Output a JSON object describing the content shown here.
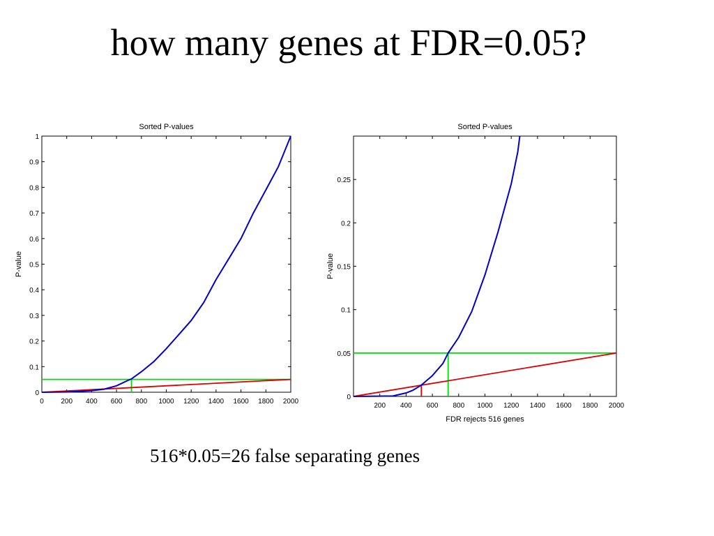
{
  "slide": {
    "title": "how many genes at FDR=0.05?",
    "caption": "516*0.05=26 false separating genes"
  },
  "colors": {
    "pvalue_curve": "#0000cc",
    "threshold": "#00dd00",
    "fdr_line": "#dd0000"
  },
  "chart_data": [
    {
      "type": "line",
      "title": "Sorted P-values",
      "xlabel": "",
      "ylabel": "P-value",
      "xlim": [
        0,
        2000
      ],
      "ylim": [
        0,
        1
      ],
      "xticks": [
        0,
        200,
        400,
        600,
        800,
        1000,
        1200,
        1400,
        1600,
        1800,
        2000
      ],
      "yticks": [
        0,
        0.1,
        0.2,
        0.3,
        0.4,
        0.5,
        0.6,
        0.7,
        0.8,
        0.9,
        1
      ],
      "ytick_labels": [
        "0",
        "0.1",
        "0.2",
        "0.3",
        "0.4",
        "0.5",
        "0.6",
        "0.7",
        "0.8",
        "0.9",
        "1"
      ],
      "series": [
        {
          "role": "pvalue_curve",
          "points": [
            [
              0,
              0
            ],
            [
              200,
              0.001
            ],
            [
              400,
              0.006
            ],
            [
              500,
              0.012
            ],
            [
              600,
              0.025
            ],
            [
              700,
              0.048
            ],
            [
              720,
              0.052
            ],
            [
              800,
              0.08
            ],
            [
              900,
              0.12
            ],
            [
              1000,
              0.17
            ],
            [
              1100,
              0.225
            ],
            [
              1200,
              0.28
            ],
            [
              1300,
              0.35
            ],
            [
              1400,
              0.44
            ],
            [
              1500,
              0.52
            ],
            [
              1600,
              0.6
            ],
            [
              1700,
              0.7
            ],
            [
              1800,
              0.79
            ],
            [
              1900,
              0.88
            ],
            [
              2000,
              1.0
            ]
          ]
        },
        {
          "role": "fdr_line",
          "points": [
            [
              0,
              0
            ],
            [
              2000,
              0.05
            ]
          ]
        },
        {
          "role": "threshold",
          "points": [
            [
              0,
              0.05
            ],
            [
              2000,
              0.05
            ]
          ]
        },
        {
          "role": "threshold",
          "points": [
            [
              720,
              0
            ],
            [
              720,
              0.05
            ]
          ]
        }
      ]
    },
    {
      "type": "line",
      "title": "Sorted P-values",
      "xlabel": "FDR rejects 516 genes",
      "ylabel": "P-value",
      "xlim": [
        0,
        2000
      ],
      "ylim": [
        0,
        0.3
      ],
      "xticks": [
        200,
        400,
        600,
        800,
        1000,
        1200,
        1400,
        1600,
        1800,
        2000
      ],
      "yticks": [
        0,
        0.05,
        0.1,
        0.15,
        0.2,
        0.25
      ],
      "ytick_labels": [
        "0",
        "0.05",
        "0.1",
        "0.15",
        "0.2",
        "0.25"
      ],
      "series": [
        {
          "role": "pvalue_curve",
          "points": [
            [
              0,
              0
            ],
            [
              300,
              0.0005
            ],
            [
              400,
              0.004
            ],
            [
              450,
              0.007
            ],
            [
              516,
              0.013
            ],
            [
              600,
              0.024
            ],
            [
              680,
              0.038
            ],
            [
              720,
              0.05
            ],
            [
              800,
              0.068
            ],
            [
              900,
              0.098
            ],
            [
              1000,
              0.14
            ],
            [
              1100,
              0.19
            ],
            [
              1200,
              0.245
            ],
            [
              1250,
              0.282
            ],
            [
              1265,
              0.3
            ]
          ]
        },
        {
          "role": "fdr_line",
          "points": [
            [
              0,
              0
            ],
            [
              2000,
              0.05
            ]
          ]
        },
        {
          "role": "threshold",
          "points": [
            [
              0,
              0.05
            ],
            [
              2000,
              0.05
            ]
          ]
        },
        {
          "role": "threshold",
          "points": [
            [
              720,
              0
            ],
            [
              720,
              0.05
            ]
          ]
        },
        {
          "role": "fdr_line",
          "points": [
            [
              516,
              0
            ],
            [
              516,
              0.013
            ]
          ]
        }
      ]
    }
  ]
}
